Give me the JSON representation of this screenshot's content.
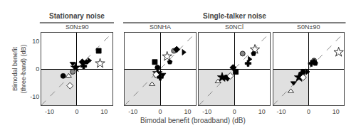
{
  "chart_data": [
    {
      "type": "scatter",
      "title": "S0N±90",
      "annotations": [
        {
          "text": "Stationary noise"
        }
      ],
      "xlabel": "Bimodal benefit (broadband) (dB)",
      "ylabel": "Bimodal benefit\n(three-band) (dB)",
      "xlim": [
        -13,
        13
      ],
      "ylim": [
        -13,
        13
      ],
      "xticks": [
        -10,
        0,
        10
      ],
      "yticks": [
        -10,
        0,
        10
      ],
      "grid": false,
      "series": [
        {
          "marker": "circle",
          "color": "black",
          "x": [
            -5.0
          ],
          "y": [
            -2.5
          ]
        },
        {
          "marker": "square",
          "color": "black",
          "x": [
            8.0
          ],
          "y": [
            6.5
          ]
        },
        {
          "marker": "triangle-down",
          "color": "black",
          "x": [
            -1.5
          ],
          "y": [
            2.0
          ]
        },
        {
          "marker": "star",
          "color": "black",
          "x": [
            -0.5
          ],
          "y": [
            0.5
          ]
        },
        {
          "marker": "triangle-up",
          "color": "white",
          "x": [
            -3.0
          ],
          "y": [
            -2.5
          ]
        },
        {
          "marker": "circle",
          "color": "#888888",
          "x": [
            -1.5
          ],
          "y": [
            -1.0
          ]
        },
        {
          "marker": "diamond",
          "color": "white",
          "x": [
            -2.5
          ],
          "y": [
            -6.0
          ]
        },
        {
          "marker": "diamond",
          "color": "black",
          "x": [
            2.0
          ],
          "y": [
            2.5
          ]
        },
        {
          "marker": "cross",
          "color": "black",
          "x": [
            2.5
          ],
          "y": [
            1.0
          ]
        },
        {
          "marker": "star",
          "color": "white",
          "x": [
            8.5
          ],
          "y": [
            2.0
          ]
        },
        {
          "marker": "pentagon",
          "color": "black",
          "x": [
            3.5
          ],
          "y": [
            2.5
          ]
        },
        {
          "marker": "triangle-right",
          "color": "black",
          "x": [
            4.5
          ],
          "y": [
            3.0
          ]
        }
      ]
    },
    {
      "type": "scatter",
      "title": "S0NHA",
      "annotations": [
        {
          "text": "Single-talker noise"
        }
      ],
      "xlim": [
        -13,
        13
      ],
      "ylim": [
        -13,
        13
      ],
      "xticks": [
        -10,
        0,
        10
      ],
      "yticks": [
        -10,
        0,
        10
      ],
      "grid": false,
      "tick_labels": "x",
      "series": [
        {
          "marker": "circle",
          "color": "black",
          "x": [
            -1.0
          ],
          "y": [
            0.5
          ]
        },
        {
          "marker": "square",
          "color": "black",
          "x": [
            -2.0
          ],
          "y": [
            2.5
          ]
        },
        {
          "marker": "triangle-down",
          "color": "black",
          "x": [
            1.0
          ],
          "y": [
            -2.0
          ]
        },
        {
          "marker": "star",
          "color": "black",
          "x": [
            -1.0
          ],
          "y": [
            -1.5
          ]
        },
        {
          "marker": "triangle-up",
          "color": "white",
          "x": [
            -3.0
          ],
          "y": [
            -5.5
          ]
        },
        {
          "marker": "circle",
          "color": "#888888",
          "x": [
            5.0
          ],
          "y": [
            6.5
          ]
        },
        {
          "marker": "diamond",
          "color": "white",
          "x": [
            -1.5
          ],
          "y": [
            -2.0
          ]
        },
        {
          "marker": "diamond",
          "color": "black",
          "x": [
            6.0
          ],
          "y": [
            7.0
          ]
        },
        {
          "marker": "cross",
          "color": "black",
          "x": [
            0.0
          ],
          "y": [
            -3.0
          ]
        },
        {
          "marker": "star",
          "color": "white",
          "x": [
            2.5
          ],
          "y": [
            4.5
          ]
        },
        {
          "marker": "pentagon",
          "color": "black",
          "x": [
            3.5
          ],
          "y": [
            2.5
          ]
        },
        {
          "marker": "triangle-right",
          "color": "black",
          "x": [
            8.5
          ],
          "y": [
            6.0
          ]
        }
      ]
    },
    {
      "type": "scatter",
      "title": "S0NCl",
      "xlim": [
        -13,
        13
      ],
      "ylim": [
        -13,
        13
      ],
      "xticks": [
        -10,
        0,
        10
      ],
      "yticks": [
        -10,
        0,
        10
      ],
      "grid": false,
      "tick_labels": "x",
      "series": [
        {
          "marker": "circle",
          "color": "black",
          "x": [
            -3.0
          ],
          "y": [
            -3.0
          ]
        },
        {
          "marker": "square",
          "color": "black",
          "x": [
            0.5
          ],
          "y": [
            -1.0
          ]
        },
        {
          "marker": "triangle-down",
          "color": "black",
          "x": [
            -2.5
          ],
          "y": [
            -3.5
          ]
        },
        {
          "marker": "star",
          "color": "black",
          "x": [
            -4.5
          ],
          "y": [
            -3.0
          ]
        },
        {
          "marker": "triangle-up",
          "color": "white",
          "x": [
            -6.0
          ],
          "y": [
            -4.5
          ]
        },
        {
          "marker": "circle",
          "color": "#888888",
          "x": [
            3.0
          ],
          "y": [
            5.5
          ]
        },
        {
          "marker": "diamond",
          "color": "white",
          "x": [
            -1.5
          ],
          "y": [
            -2.5
          ]
        },
        {
          "marker": "diamond",
          "color": "black",
          "x": [
            -0.5
          ],
          "y": [
            0.5
          ]
        },
        {
          "marker": "cross",
          "color": "black",
          "x": [
            5.0
          ],
          "y": [
            2.0
          ]
        },
        {
          "marker": "star",
          "color": "white",
          "x": [
            7.5
          ],
          "y": [
            7.0
          ]
        },
        {
          "marker": "pentagon",
          "color": "black",
          "x": [
            7.0
          ],
          "y": [
            5.5
          ]
        },
        {
          "marker": "triangle-right",
          "color": "black",
          "x": [
            5.5
          ],
          "y": [
            3.5
          ]
        }
      ]
    },
    {
      "type": "scatter",
      "title": "S0N±90",
      "xlim": [
        -13,
        13
      ],
      "ylim": [
        -13,
        13
      ],
      "xticks": [
        -10,
        0,
        10
      ],
      "yticks": [
        -10,
        0,
        10
      ],
      "grid": false,
      "tick_labels": "x",
      "series": [
        {
          "marker": "circle",
          "color": "black",
          "x": [
            -2.0
          ],
          "y": [
            -1.0
          ]
        },
        {
          "marker": "square",
          "color": "black",
          "x": [
            -2.5
          ],
          "y": [
            -2.0
          ]
        },
        {
          "marker": "triangle-down",
          "color": "black",
          "x": [
            -5.5
          ],
          "y": [
            -5.0
          ]
        },
        {
          "marker": "star",
          "color": "black",
          "x": [
            -3.5
          ],
          "y": [
            -3.0
          ]
        },
        {
          "marker": "triangle-up",
          "color": "white",
          "x": [
            -6.5
          ],
          "y": [
            -8.0
          ]
        },
        {
          "marker": "circle",
          "color": "#888888",
          "x": [
            2.0
          ],
          "y": [
            3.0
          ]
        },
        {
          "marker": "diamond",
          "color": "white",
          "x": [
            -2.0
          ],
          "y": [
            -3.0
          ]
        },
        {
          "marker": "diamond",
          "color": "black",
          "x": [
            2.0
          ],
          "y": [
            2.5
          ]
        },
        {
          "marker": "cross",
          "color": "black",
          "x": [
            1.0
          ],
          "y": [
            2.0
          ]
        },
        {
          "marker": "star",
          "color": "white",
          "x": [
            11.0
          ],
          "y": [
            6.0
          ]
        },
        {
          "marker": "pentagon",
          "color": "black",
          "x": [
            2.5
          ],
          "y": [
            2.0
          ]
        },
        {
          "marker": "triangle-right",
          "color": "black",
          "x": [
            -0.5
          ],
          "y": [
            -1.0
          ]
        }
      ]
    }
  ]
}
